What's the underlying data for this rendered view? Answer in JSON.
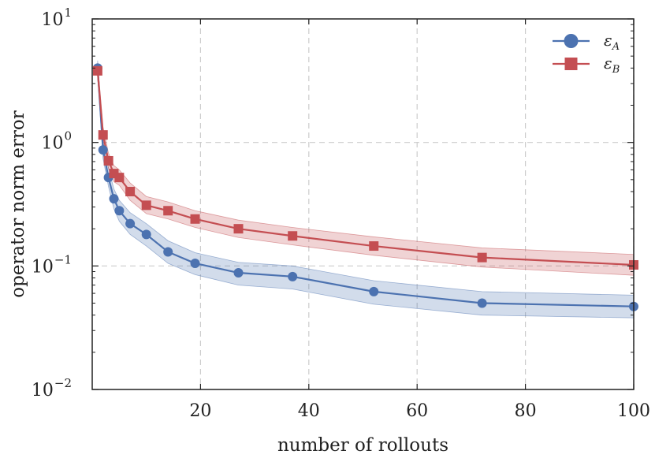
{
  "chart_data": {
    "type": "line",
    "title": "",
    "xlabel": "number of rollouts",
    "ylabel": "operator norm error",
    "xscale": "linear",
    "yscale": "log",
    "xlim": [
      0,
      100
    ],
    "ylim": [
      0.01,
      10
    ],
    "xticks": [
      20,
      40,
      60,
      80,
      100
    ],
    "yticks": [
      {
        "value": 0.01,
        "base": "10",
        "exp": "−2"
      },
      {
        "value": 0.1,
        "base": "10",
        "exp": "−1"
      },
      {
        "value": 1,
        "base": "10",
        "exp": "0"
      },
      {
        "value": 10,
        "base": "10",
        "exp": "1"
      }
    ],
    "grid": true,
    "legend_position": "top-right",
    "series": [
      {
        "name": "εA",
        "legend_main": "ε",
        "legend_sub": "A",
        "color": "#4c72b0",
        "marker": "circle",
        "x": [
          1,
          2,
          3,
          4,
          5,
          7,
          10,
          14,
          19,
          27,
          37,
          52,
          72,
          100
        ],
        "y": [
          4.0,
          0.87,
          0.52,
          0.35,
          0.28,
          0.22,
          0.18,
          0.13,
          0.105,
          0.088,
          0.082,
          0.062,
          0.05,
          0.047
        ],
        "lower": [
          3.5,
          0.74,
          0.44,
          0.29,
          0.23,
          0.18,
          0.145,
          0.105,
          0.085,
          0.07,
          0.065,
          0.049,
          0.04,
          0.038
        ],
        "upper": [
          4.6,
          1.02,
          0.62,
          0.42,
          0.34,
          0.27,
          0.22,
          0.16,
          0.128,
          0.107,
          0.1,
          0.076,
          0.062,
          0.058
        ]
      },
      {
        "name": "εB",
        "legend_main": "ε",
        "legend_sub": "B",
        "color": "#c44e52",
        "marker": "square",
        "x": [
          1,
          2,
          3,
          4,
          5,
          7,
          10,
          14,
          19,
          27,
          37,
          52,
          72,
          100
        ],
        "y": [
          3.8,
          1.15,
          0.71,
          0.56,
          0.52,
          0.4,
          0.31,
          0.28,
          0.24,
          0.2,
          0.175,
          0.145,
          0.117,
          0.102
        ],
        "lower": [
          3.3,
          1.0,
          0.62,
          0.48,
          0.45,
          0.34,
          0.265,
          0.24,
          0.205,
          0.17,
          0.148,
          0.122,
          0.098,
          0.084
        ],
        "upper": [
          4.4,
          1.33,
          0.82,
          0.65,
          0.6,
          0.47,
          0.365,
          0.33,
          0.28,
          0.235,
          0.205,
          0.172,
          0.14,
          0.124
        ]
      }
    ]
  }
}
